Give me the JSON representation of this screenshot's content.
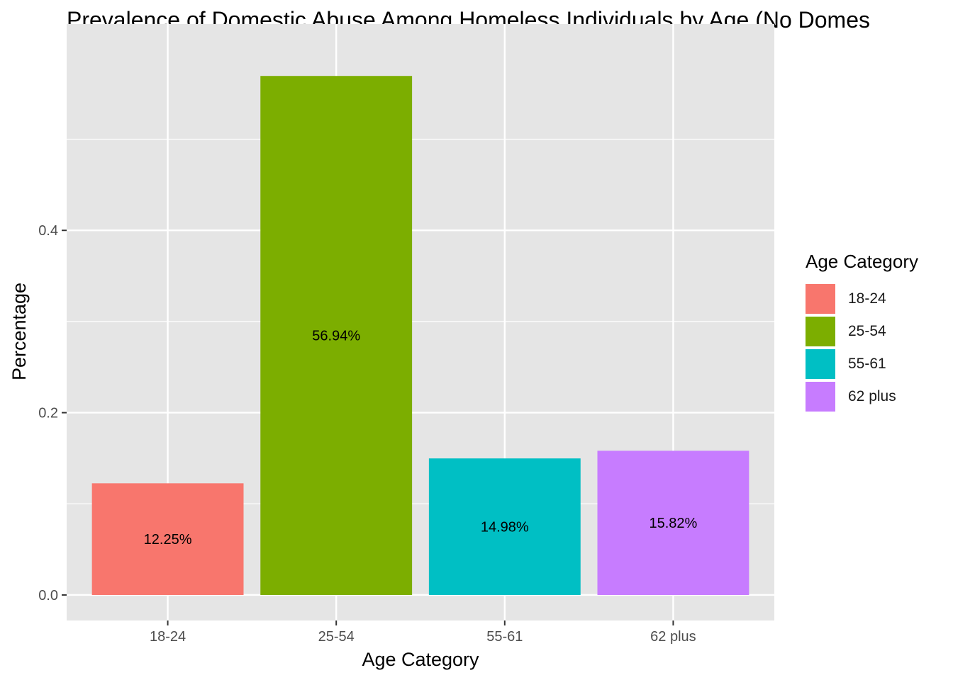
{
  "chart_data": {
    "type": "bar",
    "title": "Prevalence of Domestic Abuse Among Homeless Individuals by Age (No Domes",
    "xlabel": "Age Category",
    "ylabel": "Percentage",
    "categories": [
      "18-24",
      "25-54",
      "55-61",
      "62 plus"
    ],
    "values": [
      0.1225,
      0.5694,
      0.1498,
      0.1582
    ],
    "data_labels": [
      "12.25%",
      "56.94%",
      "14.98%",
      "15.82%"
    ],
    "colors": [
      "#F8766D",
      "#7CAE00",
      "#00BFC4",
      "#C77CFF"
    ],
    "ylim": [
      -0.028,
      0.6263
    ],
    "y_ticks": [
      0.0,
      0.2,
      0.4
    ],
    "y_tick_labels": [
      "0.0",
      "0.2",
      "0.4"
    ],
    "grid": true,
    "panel_color": "#E5E5E5",
    "legend": {
      "title": "Age Category",
      "position": "right",
      "items": [
        "18-24",
        "25-54",
        "55-61",
        "62 plus"
      ]
    }
  }
}
